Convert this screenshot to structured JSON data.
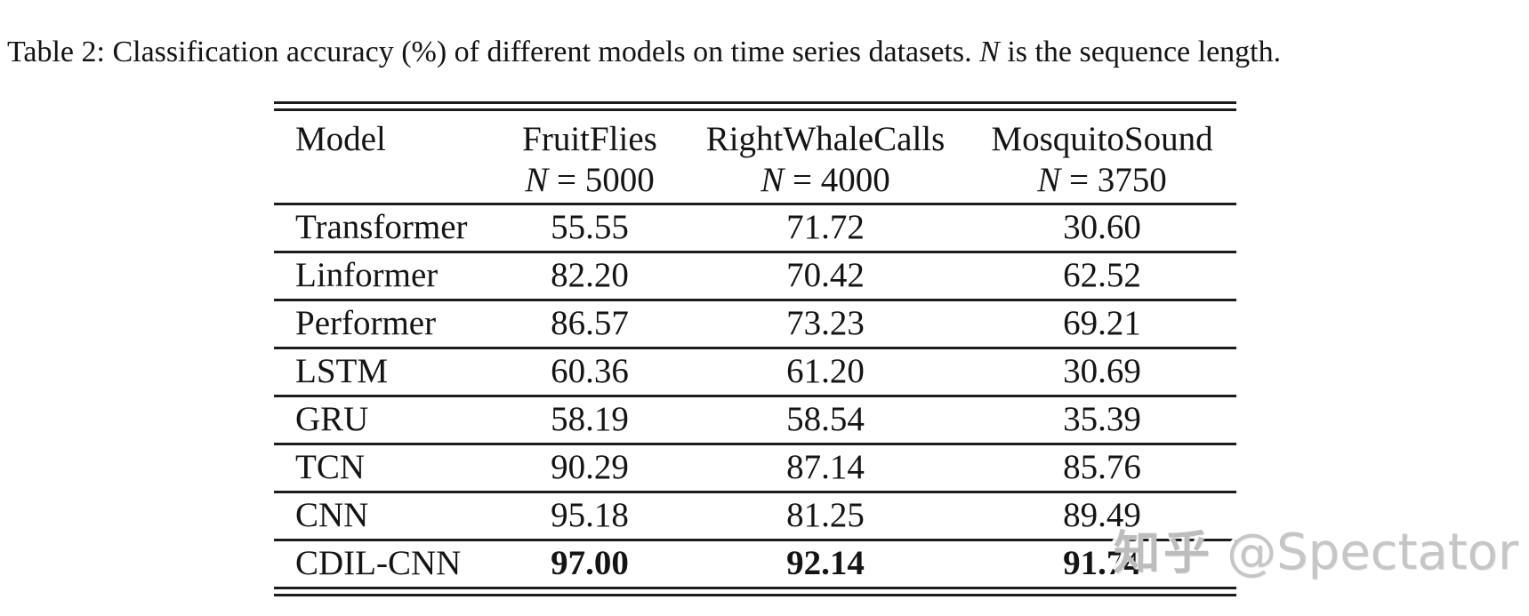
{
  "caption": {
    "part1": "Table 2: Classification accuracy (%) of different models on time series datasets.",
    "math_n": "N",
    "part2": "is the sequence length."
  },
  "table": {
    "columns": [
      {
        "name": "Model",
        "n": "",
        "seq": ""
      },
      {
        "name": "FruitFlies",
        "n": "N",
        "seq": "= 5000"
      },
      {
        "name": "RightWhaleCalls",
        "n": "N",
        "seq": "= 4000"
      },
      {
        "name": "MosquitoSound",
        "n": "N",
        "seq": "= 3750"
      }
    ],
    "rows": [
      {
        "model": "Transformer",
        "values": [
          "55.55",
          "71.72",
          "30.60"
        ]
      },
      {
        "model": "Linformer",
        "values": [
          "82.20",
          "70.42",
          "62.52"
        ]
      },
      {
        "model": "Performer",
        "values": [
          "86.57",
          "73.23",
          "69.21"
        ]
      },
      {
        "model": "LSTM",
        "values": [
          "60.36",
          "61.20",
          "30.69"
        ]
      },
      {
        "model": "GRU",
        "values": [
          "58.19",
          "58.54",
          "35.39"
        ]
      },
      {
        "model": "TCN",
        "values": [
          "90.29",
          "87.14",
          "85.76"
        ]
      },
      {
        "model": "CNN",
        "values": [
          "95.18",
          "81.25",
          "89.49"
        ]
      },
      {
        "model": "CDIL-CNN",
        "values": [
          "97.00",
          "92.14",
          "91.74"
        ]
      }
    ]
  },
  "watermark": {
    "site": "知乎",
    "user": "@Spectator"
  },
  "colors": {
    "text": "#141414",
    "rule": "#1c1c1c",
    "watermark_gray": "#c6c6c6",
    "background": "#ffffff"
  }
}
